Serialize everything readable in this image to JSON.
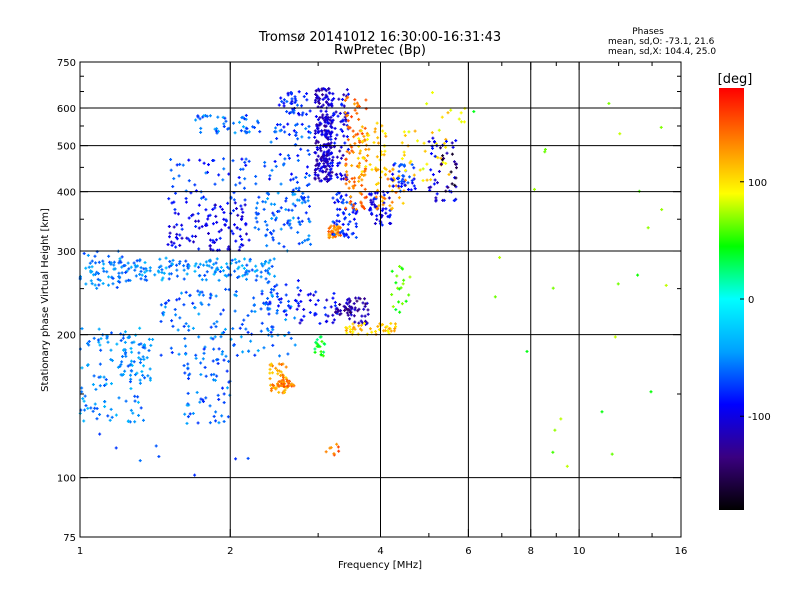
{
  "chart_data": {
    "type": "scatter",
    "title": "Tromsø 20141012 16:30:00-16:31:43",
    "subtitle": "RwPretec (Bp)",
    "xlabel": "Frequency [MHz]",
    "ylabel": "Stationary phase Virtual Height [km]",
    "xscale": "log",
    "yscale": "log",
    "xlim": [
      1,
      16
    ],
    "ylim": [
      75,
      750
    ],
    "xticks": [
      1,
      2,
      4,
      6,
      8,
      10,
      16
    ],
    "yticks": [
      75,
      100,
      200,
      300,
      400,
      500,
      600,
      750
    ],
    "x_gridlines": [
      2,
      4,
      6,
      8,
      10
    ],
    "y_gridlines": [
      100,
      200,
      300,
      400,
      500,
      600
    ],
    "x_minor_ticks": [
      3,
      5,
      7,
      9,
      12,
      14
    ],
    "y_minor_ticks": [
      150,
      250,
      350,
      450,
      550,
      650,
      700
    ],
    "grid": true,
    "phase_stats": {
      "heading": "Phases",
      "o_line": "mean, sd,O: -73.1, 21.6",
      "x_line": "mean, sd,X: 104.4, 25.0"
    },
    "colorbar": {
      "label": "[deg]",
      "range": [
        -180,
        180
      ],
      "ticks": [
        -100,
        0,
        100
      ],
      "colors": [
        "#000000",
        "#3a0080",
        "#0000ff",
        "#00a0ff",
        "#00ffff",
        "#00ff00",
        "#ffff00",
        "#ff8000",
        "#ff0000"
      ]
    },
    "clusters": [
      {
        "x": [
          1.0,
          1.25
        ],
        "y": [
          250,
          300
        ],
        "phase": -55,
        "count": 70
      },
      {
        "x": [
          1.0,
          1.35
        ],
        "y": [
          130,
          210
        ],
        "phase": -50,
        "count": 120
      },
      {
        "x": [
          1.2,
          1.4
        ],
        "y": [
          160,
          200
        ],
        "phase": -55,
        "count": 30
      },
      {
        "x": [
          1.25,
          2.5
        ],
        "y": [
          260,
          290
        ],
        "phase": -50,
        "count": 150
      },
      {
        "x": [
          1.45,
          2.7
        ],
        "y": [
          180,
          250
        ],
        "phase": -60,
        "count": 140
      },
      {
        "x": [
          1.6,
          2.0
        ],
        "y": [
          130,
          180
        ],
        "phase": -60,
        "count": 60
      },
      {
        "x": [
          1.5,
          2.2
        ],
        "y": [
          300,
          380
        ],
        "phase": -95,
        "count": 110
      },
      {
        "x": [
          1.5,
          2.4
        ],
        "y": [
          380,
          470
        ],
        "phase": -75,
        "count": 60
      },
      {
        "x": [
          1.7,
          2.3
        ],
        "y": [
          530,
          580
        ],
        "phase": -60,
        "count": 45
      },
      {
        "x": [
          2.2,
          2.9
        ],
        "y": [
          300,
          400
        ],
        "phase": -60,
        "count": 90
      },
      {
        "x": [
          2.4,
          2.9
        ],
        "y": [
          400,
          560
        ],
        "phase": -70,
        "count": 60
      },
      {
        "x": [
          2.5,
          2.9
        ],
        "y": [
          580,
          650
        ],
        "phase": -80,
        "count": 40
      },
      {
        "x": [
          2.4,
          2.6
        ],
        "y": [
          150,
          175
        ],
        "phase": 125,
        "count": 55
      },
      {
        "x": [
          2.5,
          2.7
        ],
        "y": [
          155,
          160
        ],
        "phase": 140,
        "count": 25
      },
      {
        "x": [
          2.3,
          2.8
        ],
        "y": [
          220,
          260
        ],
        "phase": -75,
        "count": 30
      },
      {
        "x": [
          2.7,
          3.3
        ],
        "y": [
          210,
          250
        ],
        "phase": -95,
        "count": 40
      },
      {
        "x": [
          2.95,
          3.2
        ],
        "y": [
          420,
          660
        ],
        "phase": -110,
        "count": 200
      },
      {
        "x": [
          3.1,
          3.45
        ],
        "y": [
          420,
          660
        ],
        "phase": -100,
        "count": 100
      },
      {
        "x": [
          3.15,
          3.35
        ],
        "y": [
          320,
          340
        ],
        "phase": 135,
        "count": 35
      },
      {
        "x": [
          3.2,
          3.6
        ],
        "y": [
          320,
          400
        ],
        "phase": -80,
        "count": 60
      },
      {
        "x": [
          3.4,
          3.75
        ],
        "y": [
          360,
          640
        ],
        "phase": 140,
        "count": 90
      },
      {
        "x": [
          3.4,
          3.8
        ],
        "y": [
          210,
          240
        ],
        "phase": -120,
        "count": 40
      },
      {
        "x": [
          3.25,
          3.55
        ],
        "y": [
          220,
          232
        ],
        "phase": -130,
        "count": 25
      },
      {
        "x": [
          3.4,
          4.3
        ],
        "y": [
          200,
          212
        ],
        "phase": 108,
        "count": 45
      },
      {
        "x": [
          2.95,
          3.1
        ],
        "y": [
          180,
          200
        ],
        "phase": 40,
        "count": 20
      },
      {
        "x": [
          3.6,
          4.1
        ],
        "y": [
          420,
          560
        ],
        "phase": 110,
        "count": 50
      },
      {
        "x": [
          3.8,
          4.2
        ],
        "y": [
          340,
          400
        ],
        "phase": -95,
        "count": 50
      },
      {
        "x": [
          3.9,
          4.5
        ],
        "y": [
          360,
          450
        ],
        "phase": 125,
        "count": 40
      },
      {
        "x": [
          4.2,
          4.7
        ],
        "y": [
          400,
          460
        ],
        "phase": -80,
        "count": 40
      },
      {
        "x": [
          4.1,
          4.6
        ],
        "y": [
          220,
          280
        ],
        "phase": 55,
        "count": 20
      },
      {
        "x": [
          4.4,
          5.5
        ],
        "y": [
          420,
          540
        ],
        "phase": 100,
        "count": 35
      },
      {
        "x": [
          5.0,
          5.7
        ],
        "y": [
          380,
          520
        ],
        "phase": -100,
        "count": 40
      },
      {
        "x": [
          5.2,
          5.7
        ],
        "y": [
          400,
          520
        ],
        "phase": -150,
        "count": 15
      },
      {
        "x": [
          4.5,
          6.0
        ],
        "y": [
          560,
          650
        ],
        "phase": 100,
        "count": 10
      },
      {
        "x": [
          3.1,
          3.3
        ],
        "y": [
          108,
          118
        ],
        "phase": 140,
        "count": 8
      },
      {
        "x": [
          6.0,
          16.0
        ],
        "y": [
          100,
          700
        ],
        "phase": 60,
        "count": 25
      },
      {
        "x": [
          1.0,
          2.2
        ],
        "y": [
          95,
          125
        ],
        "phase": -60,
        "count": 8
      }
    ]
  }
}
